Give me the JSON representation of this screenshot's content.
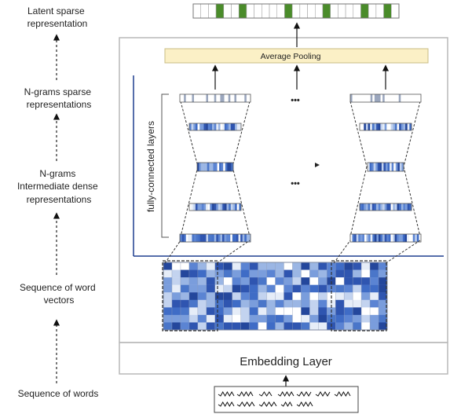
{
  "left_labels": {
    "latent": [
      "Latent sparse",
      "representation"
    ],
    "ngram_sparse": [
      "N-grams sparse",
      "representations"
    ],
    "ngram_dense": [
      "N-grams",
      "Intermediate dense",
      "representations"
    ],
    "word_vectors": [
      "Sequence of word",
      "vectors"
    ],
    "words": [
      "Sequence of words"
    ]
  },
  "pooling_label": "Average Pooling",
  "fc_label": "fully-connected layers",
  "embedding_label": "Embedding Layer",
  "ellipsis": "•••",
  "colors": {
    "latent_active": "#4a8c2a",
    "pooling_fill": "#fbf0c6",
    "pooling_border": "#c9bd86",
    "axis_blue": "#1f3f8f",
    "frame": "#b9b9b9"
  },
  "latent_active_cells": [
    3,
    6,
    12,
    17,
    22,
    25
  ],
  "latent_cell_count": 27
}
